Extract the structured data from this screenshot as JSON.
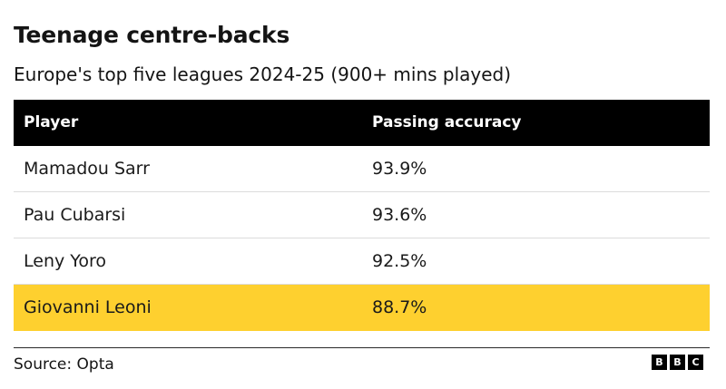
{
  "title": "Teenage centre-backs",
  "subtitle": "Europe's top five leagues 2024-25 (900+ mins played)",
  "source": "Source: Opta",
  "logo_letters": [
    "B",
    "B",
    "C"
  ],
  "colors": {
    "header_bg": "#000000",
    "highlight": "#fed02f"
  },
  "chart_data": {
    "type": "table",
    "columns": [
      "Player",
      "Passing accuracy"
    ],
    "rows": [
      {
        "player": "Mamadou Sarr",
        "passing_accuracy": "93.9%",
        "highlight": false
      },
      {
        "player": "Pau Cubarsi",
        "passing_accuracy": "93.6%",
        "highlight": false
      },
      {
        "player": "Leny Yoro",
        "passing_accuracy": "92.5%",
        "highlight": false
      },
      {
        "player": "Giovanni Leoni",
        "passing_accuracy": "88.7%",
        "highlight": true
      }
    ]
  }
}
